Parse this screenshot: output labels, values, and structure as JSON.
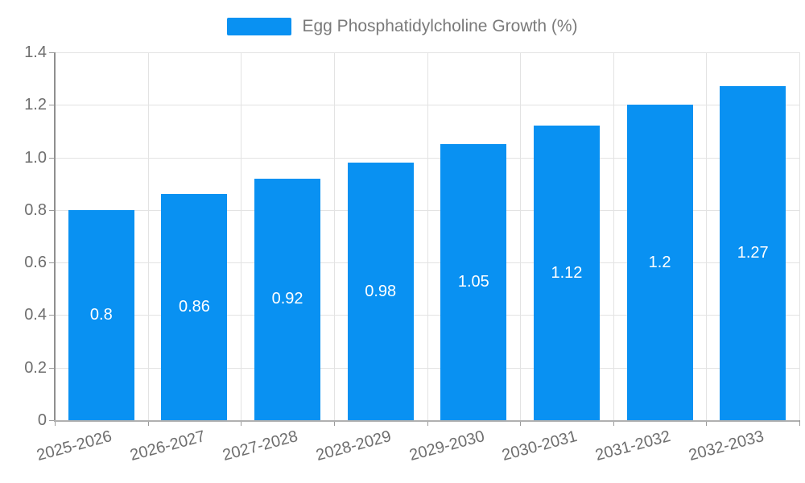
{
  "legend": {
    "label": "Egg Phosphatidylcholine Growth (%)"
  },
  "colors": {
    "bar": "#0991F2",
    "bar_label_text": "#FFFFFF",
    "grid": "#E3E3E3",
    "y_axis_line": "#8F8F8F",
    "x_axis_line": "#B0B0B0",
    "tick": "#9A9A9A",
    "axis_text": "#6E6E6E",
    "legend_text": "#7A7A7A",
    "background": "#FFFFFF"
  },
  "chart_data": {
    "type": "bar",
    "title": "Egg Phosphatidylcholine Growth (%)",
    "legend": [
      "Egg Phosphatidylcholine Growth (%)"
    ],
    "legend_position": "top-center",
    "categories": [
      "2025-2026",
      "2026-2027",
      "2027-2028",
      "2028-2029",
      "2029-2030",
      "2030-2031",
      "2031-2032",
      "2032-2033"
    ],
    "values": [
      0.8,
      0.86,
      0.92,
      0.98,
      1.05,
      1.12,
      1.2,
      1.27
    ],
    "value_labels": [
      "0.8",
      "0.86",
      "0.92",
      "0.98",
      "1.05",
      "1.12",
      "1.2",
      "1.27"
    ],
    "value_label_position": "inside-middle",
    "xlabel": "",
    "ylabel": "",
    "ylim": [
      0,
      1.4
    ],
    "y_ticks": [
      "0",
      "0.2",
      "0.4",
      "0.6",
      "0.8",
      "1.0",
      "1.2",
      "1.4"
    ],
    "grid": true,
    "x_label_rotation_deg": -15
  }
}
